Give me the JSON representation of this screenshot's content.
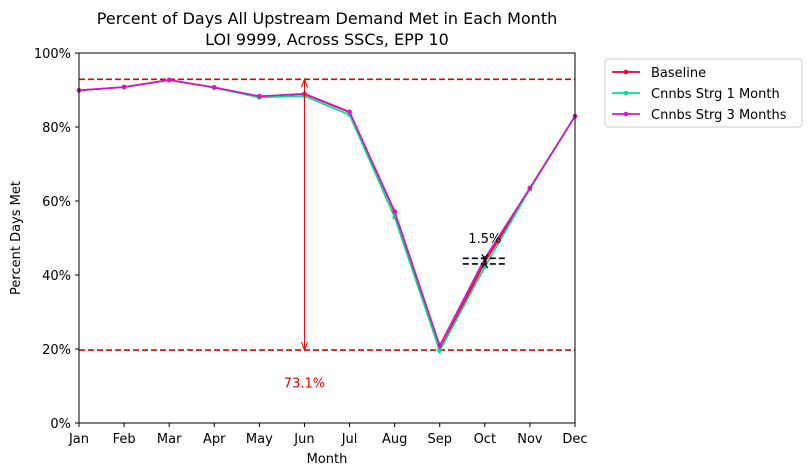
{
  "chart_data": {
    "type": "line",
    "title_line1": "Percent of Days All Upstream Demand Met in Each Month",
    "title_line2": "LOI 9999, Across SSCs, EPP 10",
    "xlabel": "Month",
    "ylabel": "Percent Days Met",
    "categories": [
      "Jan",
      "Feb",
      "Mar",
      "Apr",
      "May",
      "Jun",
      "Jul",
      "Aug",
      "Sep",
      "Oct",
      "Nov",
      "Dec"
    ],
    "ylim": [
      0,
      100
    ],
    "yticks": [
      0,
      20,
      40,
      60,
      80,
      100
    ],
    "ytick_labels": [
      "0%",
      "20%",
      "40%",
      "60%",
      "80%",
      "100%"
    ],
    "grid": false,
    "legend_position": "outside-top-right",
    "series": [
      {
        "name": "Baseline",
        "color": "#e8002a",
        "values": [
          89.9,
          90.8,
          92.7,
          90.7,
          88.3,
          88.9,
          84.0,
          57.0,
          19.8,
          43.5,
          63.5,
          82.9
        ]
      },
      {
        "name": "Cnnbs Strg 1 Month",
        "color": "#00e08a",
        "values": [
          89.9,
          90.8,
          92.7,
          90.6,
          88.0,
          88.4,
          83.3,
          55.6,
          19.5,
          42.2,
          63.2,
          82.9
        ]
      },
      {
        "name": "Cnnbs Strg 3 Months",
        "color": "#e010c8",
        "values": [
          89.9,
          90.8,
          92.7,
          90.7,
          88.3,
          89.0,
          84.1,
          57.2,
          20.9,
          44.5,
          63.5,
          82.9
        ]
      }
    ],
    "reference_lines": {
      "max": 92.9,
      "min": 19.7,
      "color": "#e00000"
    },
    "range_annotation": {
      "category": "Jun",
      "from": 92.9,
      "to": 19.7,
      "label": "73.1%",
      "label_value": 10.9,
      "color": "#e00000"
    },
    "spread_annotation": {
      "category": "Oct",
      "high": 44.5,
      "low": 43.0,
      "label": "1.5%",
      "label_value": 50.0,
      "color": "#000000"
    }
  }
}
